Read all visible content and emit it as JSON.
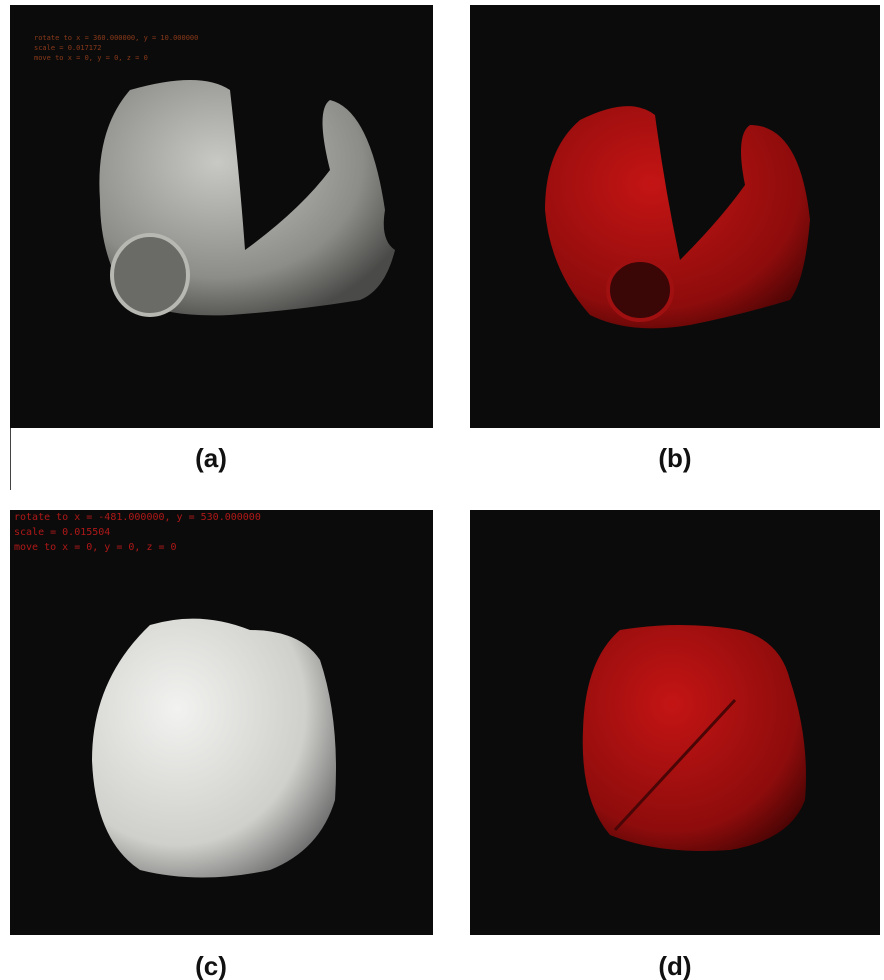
{
  "panels": [
    {
      "label": "(a)",
      "overlay": [
        "rotate to x = 360.000000, y = 10.000000",
        "scale = 0.017172",
        "move to x = 0, y = 0, z = 0"
      ]
    },
    {
      "label": "(b)"
    },
    {
      "label": "(c)",
      "overlay": [
        "rotate to x = -481.000000, y = 530.000000",
        "scale = 0.015504",
        "move to x = 0, y = 0, z = 0"
      ]
    },
    {
      "label": "(d)"
    }
  ]
}
